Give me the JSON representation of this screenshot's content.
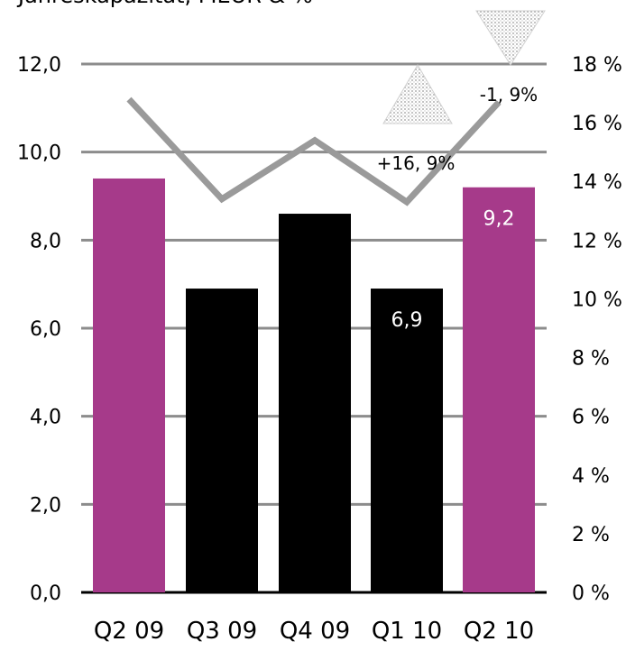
{
  "chart_data": {
    "type": "bar",
    "title": "Jahreskapazität, MEUR & %",
    "categories": [
      "Q2 09",
      "Q3 09",
      "Q4 09",
      "Q1 10",
      "Q2 10"
    ],
    "series": [
      {
        "values": [
          9.4,
          6.9,
          8.6,
          6.9,
          9.2
        ],
        "colors": [
          "#a63a8a",
          "#000000",
          "#000000",
          "#000000",
          "#a63a8a"
        ],
        "data_labels": [
          "",
          "",
          "",
          "6,9",
          "9,2"
        ],
        "data_label_colors": [
          "#ffffff",
          "#ffffff",
          "#ffffff",
          "#ffffff",
          "#ffffff"
        ]
      },
      {
        "type": "line",
        "axis": "right",
        "values": [
          16.8,
          13.4,
          15.4,
          13.3,
          16.7
        ],
        "color": "#9a9a9a"
      }
    ],
    "y_left": {
      "lim": [
        0,
        12
      ],
      "ticks": [
        0,
        2,
        4,
        6,
        8,
        10,
        12
      ],
      "tick_labels": [
        "0,0",
        "2,0",
        "4,0",
        "6,0",
        "8,0",
        "10,0",
        "12,0"
      ]
    },
    "y_right": {
      "lim": [
        0,
        18
      ],
      "ticks": [
        0,
        2,
        4,
        6,
        8,
        10,
        12,
        14,
        16,
        18
      ],
      "tick_labels": [
        "0 %",
        "2 %",
        "4 %",
        "6 %",
        "8 %",
        "10 %",
        "12 %",
        "14 %",
        "16 %",
        "18 %"
      ]
    },
    "grid": true,
    "annotations": [
      {
        "label": "+16, 9%",
        "direction": "up",
        "category_index": 3
      },
      {
        "label": "-1, 9%",
        "direction": "down",
        "category_index": 4
      }
    ]
  }
}
